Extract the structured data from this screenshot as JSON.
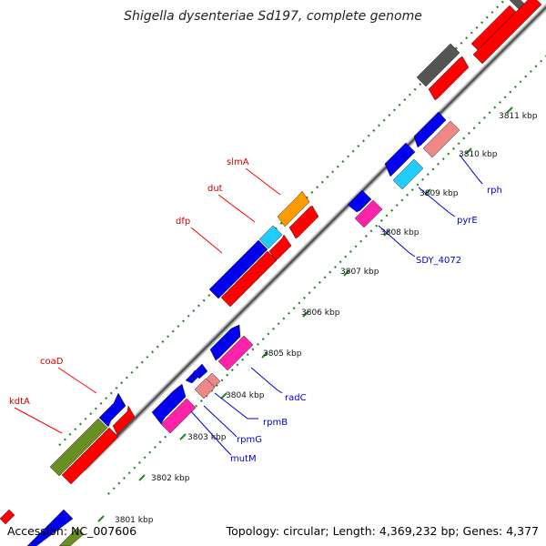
{
  "title": "Shigella dysenteriae Sd197, complete genome",
  "footer": {
    "accession": "Accession: NC_007606",
    "summary": "Topology: circular; Length: 4,369,232 bp; Genes: 4,377"
  },
  "ticks": [
    "3801 kbp",
    "3802 kbp",
    "3803 kbp",
    "3804 kbp",
    "3805 kbp",
    "3806 kbp",
    "3807 kbp",
    "3808 kbp",
    "3809 kbp",
    "3810 kbp",
    "3811 kbp"
  ],
  "genes": {
    "kdtA": "kdtA",
    "coaD": "coaD",
    "dfp": "dfp",
    "dut": "dut",
    "slmA": "slmA",
    "mutM": "mutM",
    "rpmG": "rpmG",
    "rpmB": "rpmB",
    "radC": "radC",
    "SDY_4072": "SDY_4072",
    "pyrE": "pyrE",
    "rph": "rph"
  },
  "colors": {
    "blue": "#0000ee",
    "red": "#ff0000",
    "green": "#6b8e23",
    "orange": "#ff9900",
    "cyan": "#22ccff",
    "magenta": "#ff22aa",
    "pink": "#ee8888",
    "gray": "#555555",
    "dots": "#228822"
  }
}
